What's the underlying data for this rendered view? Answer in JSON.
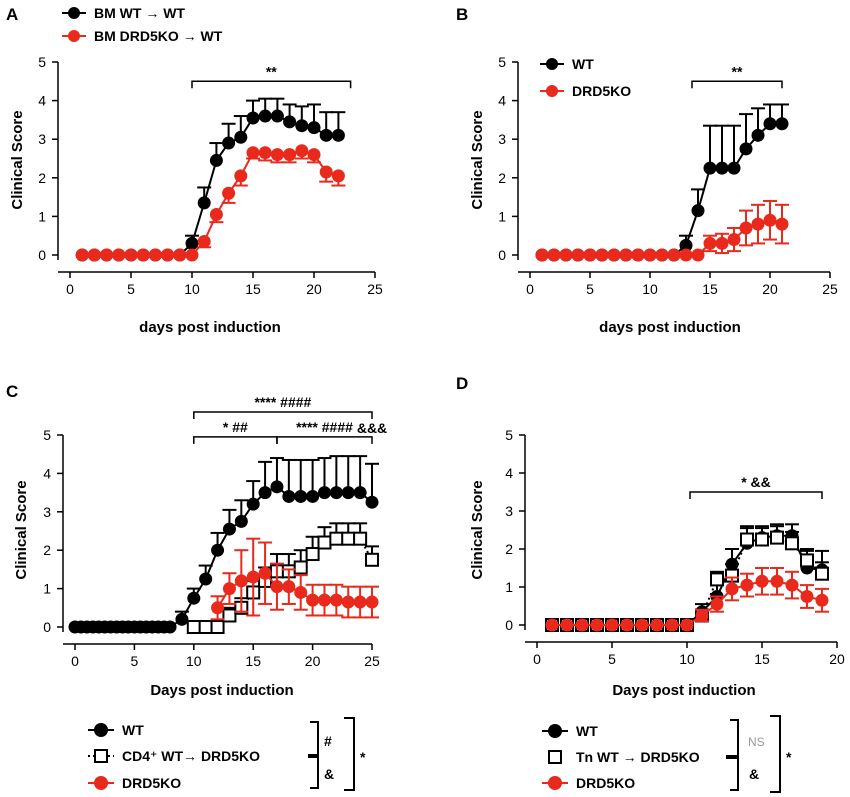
{
  "colors": {
    "black": "#000000",
    "red": "#e8291c",
    "grey": "#9a9a9a"
  },
  "chart_data": [
    {
      "panel": "A",
      "type": "line",
      "xlabel": "days post induction",
      "ylabel": "Clinical Score",
      "xlim": [
        0,
        25
      ],
      "ylim": [
        0,
        5
      ],
      "xticks": [
        0,
        5,
        10,
        15,
        20,
        25
      ],
      "yticks": [
        0,
        1,
        2,
        3,
        4,
        5
      ],
      "legend": [
        "BM WT → WT",
        "BM DRD5KO → WT"
      ],
      "brackets": [
        {
          "x1": 10,
          "x2": 23,
          "y": 4.5,
          "label": "**"
        }
      ],
      "series": [
        {
          "name": "BM WT → WT",
          "color": "black",
          "marker": "filled-circle",
          "x": [
            1,
            2,
            3,
            4,
            5,
            6,
            7,
            8,
            9,
            10,
            11,
            12,
            13,
            14,
            15,
            16,
            17,
            18,
            19,
            20,
            21,
            22
          ],
          "y": [
            0,
            0,
            0,
            0,
            0,
            0,
            0,
            0,
            0,
            0.3,
            1.35,
            2.45,
            2.9,
            3.05,
            3.55,
            3.6,
            3.6,
            3.45,
            3.35,
            3.3,
            3.1,
            3.1
          ],
          "err": [
            0,
            0,
            0,
            0,
            0,
            0,
            0,
            0,
            0,
            0.2,
            0.4,
            0.45,
            0.5,
            0.55,
            0.45,
            0.45,
            0.45,
            0.45,
            0.5,
            0.6,
            0.6,
            0.6
          ],
          "err_dir": "up"
        },
        {
          "name": "BM DRD5KO → WT",
          "color": "red",
          "marker": "filled-circle",
          "x": [
            1,
            2,
            3,
            4,
            5,
            6,
            7,
            8,
            9,
            10,
            11,
            12,
            13,
            14,
            15,
            16,
            17,
            18,
            19,
            20,
            21,
            22
          ],
          "y": [
            0,
            0,
            0,
            0,
            0,
            0,
            0,
            0,
            0,
            0,
            0.35,
            1.05,
            1.6,
            2.05,
            2.65,
            2.65,
            2.6,
            2.6,
            2.7,
            2.6,
            2.15,
            2.05
          ],
          "err": [
            0,
            0,
            0,
            0,
            0,
            0,
            0,
            0,
            0,
            0,
            0.15,
            0.2,
            0.25,
            0.25,
            0.15,
            0.2,
            0.2,
            0.2,
            0.2,
            0.2,
            0.25,
            0.25
          ],
          "err_dir": "down"
        }
      ]
    },
    {
      "panel": "B",
      "type": "line",
      "xlabel": "days post induction",
      "ylabel": "Clinical Score",
      "xlim": [
        0,
        25
      ],
      "ylim": [
        0,
        5
      ],
      "xticks": [
        0,
        5,
        10,
        15,
        20,
        25
      ],
      "yticks": [
        0,
        1,
        2,
        3,
        4,
        5
      ],
      "legend": [
        "WT",
        "DRD5KO"
      ],
      "brackets": [
        {
          "x1": 13.5,
          "x2": 21,
          "y": 4.5,
          "label": "**"
        }
      ],
      "series": [
        {
          "name": "WT",
          "color": "black",
          "marker": "filled-circle",
          "x": [
            1,
            2,
            3,
            4,
            5,
            6,
            7,
            8,
            9,
            10,
            11,
            12,
            13,
            14,
            15,
            16,
            17,
            18,
            19,
            20,
            21
          ],
          "y": [
            0,
            0,
            0,
            0,
            0,
            0,
            0,
            0,
            0,
            0,
            0,
            0,
            0.25,
            1.15,
            2.25,
            2.25,
            2.25,
            2.75,
            3.1,
            3.4,
            3.4
          ],
          "err": [
            0,
            0,
            0,
            0,
            0,
            0,
            0,
            0,
            0,
            0,
            0,
            0,
            0.25,
            0.55,
            1.1,
            1.1,
            1.1,
            0.9,
            0.7,
            0.5,
            0.5
          ],
          "err_dir": "up"
        },
        {
          "name": "DRD5KO",
          "color": "red",
          "marker": "filled-circle",
          "x": [
            1,
            2,
            3,
            4,
            5,
            6,
            7,
            8,
            9,
            10,
            11,
            12,
            13,
            14,
            15,
            16,
            17,
            18,
            19,
            20,
            21
          ],
          "y": [
            0,
            0,
            0,
            0,
            0,
            0,
            0,
            0,
            0,
            0,
            0,
            0,
            0,
            0,
            0.3,
            0.3,
            0.4,
            0.7,
            0.8,
            0.9,
            0.8
          ],
          "err": [
            0,
            0,
            0,
            0,
            0,
            0,
            0,
            0,
            0,
            0,
            0,
            0,
            0,
            0,
            0.2,
            0.25,
            0.3,
            0.45,
            0.5,
            0.5,
            0.5
          ],
          "err_dir": "both"
        }
      ]
    },
    {
      "panel": "C",
      "type": "line",
      "xlabel": "Days post induction",
      "ylabel": "Clinical Score",
      "xlim": [
        0,
        25
      ],
      "ylim": [
        0,
        5
      ],
      "xticks": [
        0,
        5,
        10,
        15,
        20,
        25
      ],
      "yticks": [
        0,
        1,
        2,
        3,
        4,
        5
      ],
      "legend": [
        "WT",
        "CD4⁺ WT→ DRD5KO",
        "DRD5KO"
      ],
      "legend_brackets": {
        "inner_top": "#",
        "inner_bottom": "&",
        "outer": "*"
      },
      "brackets": [
        {
          "x1": 10,
          "x2": 25,
          "y": 5.6,
          "label": "****     ####"
        },
        {
          "x1": 10,
          "x2": 17,
          "y": 4.95,
          "label": "*   ##"
        },
        {
          "x1": 17,
          "x2": 25,
          "y": 4.95,
          "label": "****  ####"
        }
      ],
      "extra_labels": [
        {
          "x": 25,
          "y": 5.05,
          "label": "&&&"
        }
      ],
      "series": [
        {
          "name": "WT",
          "color": "black",
          "marker": "filled-circle",
          "x": [
            0,
            0.5,
            1,
            1.5,
            2,
            2.5,
            3,
            3.5,
            4,
            4.5,
            5,
            5.5,
            6,
            6.5,
            7,
            7.5,
            8,
            9,
            10,
            11,
            12,
            13,
            14,
            15,
            16,
            17,
            18,
            19,
            20,
            21,
            22,
            23,
            24,
            25
          ],
          "y": [
            0,
            0,
            0,
            0,
            0,
            0,
            0,
            0,
            0,
            0,
            0,
            0,
            0,
            0,
            0,
            0,
            0,
            0.2,
            0.75,
            1.25,
            2.0,
            2.55,
            2.75,
            3.2,
            3.5,
            3.65,
            3.4,
            3.4,
            3.4,
            3.5,
            3.5,
            3.5,
            3.5,
            3.25
          ],
          "err": [
            0,
            0,
            0,
            0,
            0,
            0,
            0,
            0,
            0,
            0,
            0,
            0,
            0,
            0,
            0,
            0,
            0,
            0.2,
            0.25,
            0.35,
            0.45,
            0.5,
            0.55,
            0.6,
            0.8,
            0.75,
            0.95,
            0.95,
            0.95,
            0.9,
            0.95,
            0.95,
            0.95,
            1.0
          ],
          "err_dir": "up"
        },
        {
          "name": "CD4⁺ WT→ DRD5KO",
          "color": "black",
          "marker": "open-square",
          "x": [
            10,
            11,
            12,
            13,
            14,
            15,
            16,
            17,
            18,
            19,
            20,
            21,
            22,
            23,
            24,
            25
          ],
          "y": [
            0,
            0,
            0,
            0.3,
            0.5,
            0.9,
            1.2,
            1.45,
            1.45,
            1.55,
            1.9,
            2.2,
            2.3,
            2.3,
            2.3,
            1.75
          ],
          "err": [
            0,
            0,
            0,
            0.2,
            0.25,
            0.3,
            0.35,
            0.45,
            0.45,
            0.45,
            0.45,
            0.4,
            0.4,
            0.4,
            0.4,
            0.35
          ],
          "err_dir": "up"
        },
        {
          "name": "DRD5KO",
          "color": "red",
          "marker": "filled-circle",
          "x": [
            12,
            13,
            14,
            15,
            16,
            17,
            18,
            19,
            20,
            21,
            22,
            23,
            24,
            25
          ],
          "y": [
            0.5,
            1.0,
            1.2,
            1.3,
            1.4,
            1.05,
            1.05,
            0.9,
            0.7,
            0.7,
            0.7,
            0.65,
            0.65,
            0.65
          ],
          "err": [
            0.3,
            0.4,
            0.8,
            1.0,
            0.8,
            0.6,
            0.45,
            0.45,
            0.4,
            0.4,
            0.4,
            0.4,
            0.4,
            0.4
          ],
          "err_dir": "both"
        }
      ]
    },
    {
      "panel": "D",
      "type": "line",
      "xlabel": "Days post induction",
      "ylabel": "Clinical Score",
      "xlim": [
        0,
        20
      ],
      "ylim": [
        0,
        5
      ],
      "xticks": [
        0,
        5,
        10,
        15,
        20
      ],
      "yticks": [
        0,
        1,
        2,
        3,
        4,
        5
      ],
      "legend": [
        "WT",
        "Tn WT → DRD5KO",
        "DRD5KO"
      ],
      "legend_brackets": {
        "inner_top": "NS",
        "inner_bottom": "&",
        "outer": "*"
      },
      "brackets": [
        {
          "x1": 10.2,
          "x2": 19,
          "y": 3.5,
          "label": "*   &&"
        }
      ],
      "series": [
        {
          "name": "WT",
          "color": "black",
          "marker": "filled-circle",
          "x": [
            1,
            2,
            3,
            4,
            5,
            6,
            7,
            8,
            9,
            10,
            11,
            12,
            13,
            14,
            15,
            16,
            17,
            18,
            19
          ],
          "y": [
            0,
            0,
            0,
            0,
            0,
            0,
            0,
            0,
            0,
            0,
            0.35,
            0.75,
            1.6,
            2.15,
            2.3,
            2.35,
            2.35,
            1.5,
            1.45
          ],
          "err": [
            0,
            0,
            0,
            0,
            0,
            0,
            0,
            0,
            0,
            0,
            0.2,
            0.3,
            0.4,
            0.4,
            0.3,
            0.3,
            0.3,
            0.45,
            0.5
          ],
          "err_dir": "up"
        },
        {
          "name": "Tn WT → DRD5KO",
          "color": "black",
          "marker": "open-square",
          "x": [
            1,
            2,
            3,
            4,
            5,
            6,
            7,
            8,
            9,
            10,
            11,
            12,
            13,
            14,
            15,
            16,
            17,
            18,
            19
          ],
          "y": [
            0,
            0,
            0,
            0,
            0,
            0,
            0,
            0,
            0,
            0,
            0.25,
            1.2,
            1.3,
            2.25,
            2.25,
            2.3,
            2.15,
            1.7,
            1.35
          ],
          "err": [
            0,
            0,
            0,
            0,
            0,
            0,
            0,
            0,
            0,
            0,
            0.15,
            0.2,
            0.3,
            0.35,
            0.3,
            0.3,
            0.3,
            0.3,
            0.3
          ],
          "err_dir": "up"
        },
        {
          "name": "DRD5KO",
          "color": "red",
          "marker": "filled-circle",
          "x": [
            1,
            2,
            3,
            4,
            5,
            6,
            7,
            8,
            9,
            10,
            11,
            12,
            13,
            14,
            15,
            16,
            17,
            18,
            19
          ],
          "y": [
            0,
            0,
            0,
            0,
            0,
            0,
            0,
            0,
            0,
            0,
            0.25,
            0.55,
            0.95,
            1.05,
            1.15,
            1.15,
            1.05,
            0.75,
            0.65
          ],
          "err": [
            0,
            0,
            0,
            0,
            0,
            0,
            0,
            0,
            0,
            0,
            0.15,
            0.2,
            0.3,
            0.3,
            0.35,
            0.35,
            0.35,
            0.3,
            0.3
          ],
          "err_dir": "both"
        }
      ]
    }
  ]
}
